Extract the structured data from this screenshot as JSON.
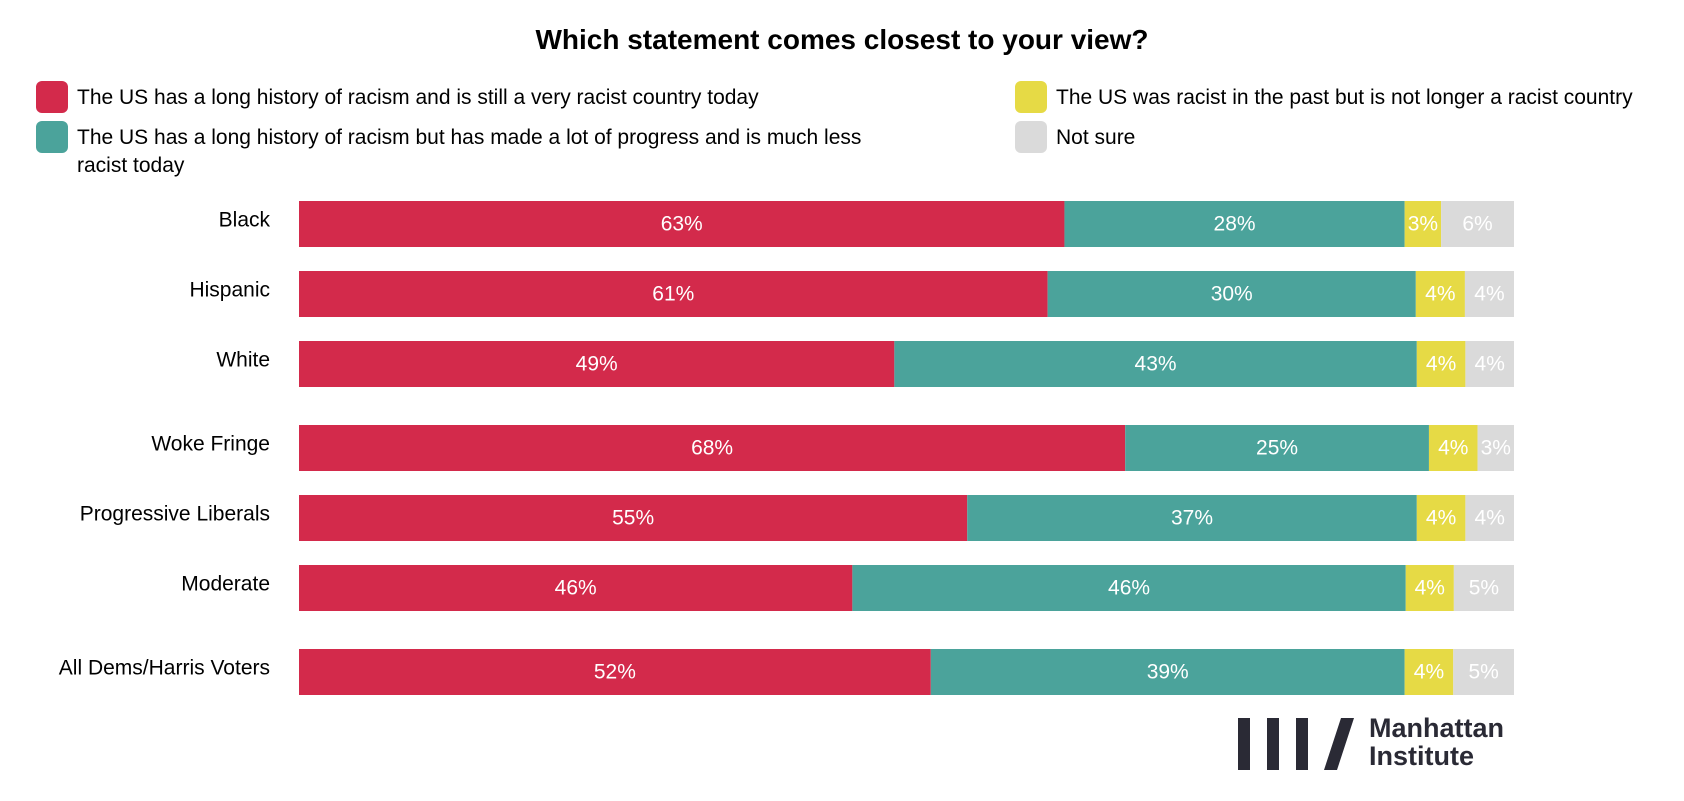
{
  "colors": {
    "very_racist": "#d32a4b",
    "progress": "#4ba39b",
    "not_racist": "#e6da45",
    "not_sure": "#dadada",
    "logo": "#2a2a35"
  },
  "brand": {
    "line1": "Manhattan",
    "line2": "Institute"
  },
  "chart_data": {
    "type": "bar",
    "orientation": "horizontal",
    "stacked": true,
    "title": "Which statement comes closest to your view?",
    "legend_position": "top",
    "categories": [
      "Black",
      "Hispanic",
      "White",
      "Woke Fringe",
      "Progressive Liberals",
      "Moderate",
      "All Dems/Harris Voters"
    ],
    "series": [
      {
        "name": "The US has a long history of racism and is still a very racist country today",
        "color_key": "very_racist",
        "values": [
          63,
          61,
          49,
          68,
          55,
          46,
          52
        ]
      },
      {
        "name": "The US has a long history of racism but has made a lot of progress and is much less racist today",
        "color_key": "progress",
        "values": [
          28,
          30,
          43,
          25,
          37,
          46,
          39
        ]
      },
      {
        "name": "The US was racist in the past but is not longer a racist country",
        "color_key": "not_racist",
        "values": [
          3,
          4,
          4,
          4,
          4,
          4,
          4
        ]
      },
      {
        "name": "Not sure",
        "color_key": "not_sure",
        "values": [
          6,
          4,
          4,
          3,
          4,
          5,
          5
        ]
      }
    ],
    "xlim": [
      0,
      100
    ],
    "value_suffix": "%"
  }
}
